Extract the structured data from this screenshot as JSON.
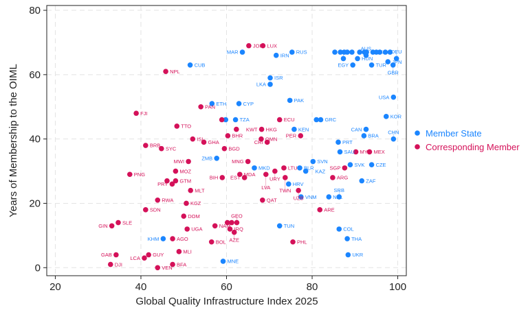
{
  "chart_data": {
    "type": "scatter",
    "xlabel": "Global Quality Infrastructure Index 2025",
    "ylabel": "Years of Membership to the OIML",
    "xlim": [
      18,
      102
    ],
    "ylim": [
      -2.5,
      81.5
    ],
    "xticks": [
      20,
      40,
      60,
      80,
      100
    ],
    "yticks": [
      0,
      20,
      40,
      60,
      80
    ],
    "grid": true,
    "legend_placement": "right",
    "series": [
      {
        "name": "Member State",
        "color": "#1a85ff",
        "points": [
          {
            "label": "MAR",
            "x": 63.7,
            "y": 67
          },
          {
            "label": "IRN",
            "x": 71.6,
            "y": 66
          },
          {
            "label": "RUS",
            "x": 75.3,
            "y": 67
          },
          {
            "label": "CUB",
            "x": 51.5,
            "y": 63
          },
          {
            "label": "ISR",
            "x": 70.2,
            "y": 59
          },
          {
            "label": "LKA",
            "x": 70.2,
            "y": 57
          },
          {
            "label": "ETH",
            "x": 56.6,
            "y": 51
          },
          {
            "label": "CYP",
            "x": 62.9,
            "y": 51
          },
          {
            "label": "PAK",
            "x": 74.8,
            "y": 52
          },
          {
            "label": "",
            "x": 59.8,
            "y": 46
          },
          {
            "label": "TZA",
            "x": 62.1,
            "y": 46
          },
          {
            "label": "KEN",
            "x": 75.8,
            "y": 43
          },
          {
            "label": "ZMB",
            "x": 57.7,
            "y": 34
          },
          {
            "label": "MKD",
            "x": 66.5,
            "y": 31
          },
          {
            "label": "BLR",
            "x": 77.1,
            "y": 31
          },
          {
            "label": "SVN",
            "x": 80.2,
            "y": 33
          },
          {
            "label": "KAZ",
            "x": 78.5,
            "y": 30
          },
          {
            "label": "HRV",
            "x": 74.5,
            "y": 26
          },
          {
            "label": "VNM",
            "x": 77.4,
            "y": 22
          },
          {
            "label": "NZL",
            "x": 83.9,
            "y": 22
          },
          {
            "label": "SRB",
            "x": 86.3,
            "y": 22
          },
          {
            "label": "TUN",
            "x": 72.4,
            "y": 13
          },
          {
            "label": "COL",
            "x": 86.3,
            "y": 12
          },
          {
            "label": "THA",
            "x": 88.2,
            "y": 9
          },
          {
            "label": "UKR",
            "x": 88.4,
            "y": 4
          },
          {
            "label": "MNE",
            "x": 59.2,
            "y": 2
          },
          {
            "label": "KHM",
            "x": 45.2,
            "y": 9
          },
          {
            "label": "PRT",
            "x": 86.1,
            "y": 39
          },
          {
            "label": "SAU",
            "x": 86.5,
            "y": 36
          },
          {
            "label": "SVK",
            "x": 88.9,
            "y": 32
          },
          {
            "label": "CZE",
            "x": 93.9,
            "y": 32
          },
          {
            "label": "ZAF",
            "x": 91.6,
            "y": 27
          },
          {
            "label": "CAN",
            "x": 92.6,
            "y": 43
          },
          {
            "label": "BRA",
            "x": 92.1,
            "y": 41
          },
          {
            "label": "CHN",
            "x": 99,
            "y": 40
          },
          {
            "label": "KOR",
            "x": 97.3,
            "y": 47
          },
          {
            "label": "USA",
            "x": 99,
            "y": 53
          },
          {
            "label": "",
            "x": 81,
            "y": 46
          },
          {
            "label": "GRC",
            "x": 82,
            "y": 46
          },
          {
            "label": "BEL",
            "x": 87.3,
            "y": 65
          },
          {
            "label": "HUN",
            "x": 90.6,
            "y": 65
          },
          {
            "label": "EGY",
            "x": 89.5,
            "y": 63
          },
          {
            "label": "TUR",
            "x": 93.9,
            "y": 63
          },
          {
            "label": "JPN",
            "x": 97.7,
            "y": 64
          },
          {
            "label": "DEU",
            "x": 99.7,
            "y": 65
          },
          {
            "label": "GBR",
            "x": 98.9,
            "y": 63
          },
          {
            "label": "AUS",
            "x": 92.6,
            "y": 66
          },
          {
            "label": "",
            "x": 85.3,
            "y": 67
          },
          {
            "label": "",
            "x": 86.6,
            "y": 67
          },
          {
            "label": "",
            "x": 87.5,
            "y": 67
          },
          {
            "label": "",
            "x": 88.2,
            "y": 67
          },
          {
            "label": "",
            "x": 89.3,
            "y": 67
          },
          {
            "label": "",
            "x": 91.1,
            "y": 67
          },
          {
            "label": "",
            "x": 92.2,
            "y": 67
          },
          {
            "label": "",
            "x": 92.7,
            "y": 67
          },
          {
            "label": "",
            "x": 94.2,
            "y": 67
          },
          {
            "label": "",
            "x": 95,
            "y": 67
          },
          {
            "label": "",
            "x": 95.8,
            "y": 67
          },
          {
            "label": "",
            "x": 97.1,
            "y": 67
          },
          {
            "label": "ITA",
            "x": 98.2,
            "y": 67
          }
        ]
      },
      {
        "name": "Corresponding Member",
        "color": "#d41159",
        "points": [
          {
            "label": "JOR",
            "x": 65.2,
            "y": 69
          },
          {
            "label": "LUX",
            "x": 68.5,
            "y": 69
          },
          {
            "label": "NPL",
            "x": 45.8,
            "y": 61
          },
          {
            "label": "PAN",
            "x": 54,
            "y": 50
          },
          {
            "label": "FJI",
            "x": 38.9,
            "y": 48
          },
          {
            "label": "TTO",
            "x": 48.4,
            "y": 44
          },
          {
            "label": "ISL",
            "x": 52.1,
            "y": 40
          },
          {
            "label": "GHA",
            "x": 54.7,
            "y": 39
          },
          {
            "label": "BRB",
            "x": 41.1,
            "y": 38
          },
          {
            "label": "SYC",
            "x": 44.8,
            "y": 37
          },
          {
            "label": "MWI",
            "x": 51.1,
            "y": 33
          },
          {
            "label": "MOZ",
            "x": 48.1,
            "y": 30
          },
          {
            "label": "PNG",
            "x": 37.4,
            "y": 29
          },
          {
            "label": "",
            "x": 46.1,
            "y": 27
          },
          {
            "label": "GTM",
            "x": 48.1,
            "y": 27
          },
          {
            "label": "PRY",
            "x": 47.3,
            "y": 26
          },
          {
            "label": "MLT",
            "x": 51.6,
            "y": 24
          },
          {
            "label": "RWA",
            "x": 43.9,
            "y": 21
          },
          {
            "label": "KGZ",
            "x": 50.6,
            "y": 20
          },
          {
            "label": "SDN",
            "x": 41.1,
            "y": 18
          },
          {
            "label": "DOM",
            "x": 50,
            "y": 16
          },
          {
            "label": "SLE",
            "x": 34.7,
            "y": 14
          },
          {
            "label": "GIN",
            "x": 33.2,
            "y": 13
          },
          {
            "label": "UGA",
            "x": 50.8,
            "y": 12
          },
          {
            "label": "AGO",
            "x": 47.4,
            "y": 9
          },
          {
            "label": "BOL",
            "x": 56.5,
            "y": 8
          },
          {
            "label": "MLI",
            "x": 48.9,
            "y": 5
          },
          {
            "label": "GAB",
            "x": 34.2,
            "y": 4
          },
          {
            "label": "GUY",
            "x": 41.8,
            "y": 4
          },
          {
            "label": "LCA",
            "x": 40.8,
            "y": 3
          },
          {
            "label": "DJI",
            "x": 32.9,
            "y": 1
          },
          {
            "label": "VEN",
            "x": 43.9,
            "y": 0
          },
          {
            "label": "BFA",
            "x": 47.4,
            "y": 1
          },
          {
            "label": "NAM",
            "x": 57.3,
            "y": 13
          },
          {
            "label": "",
            "x": 60.2,
            "y": 14
          },
          {
            "label": "",
            "x": 61.2,
            "y": 14
          },
          {
            "label": "GEO",
            "x": 62.4,
            "y": 14
          },
          {
            "label": "IRQ",
            "x": 60.8,
            "y": 12
          },
          {
            "label": "AZE",
            "x": 61.8,
            "y": 11
          },
          {
            "label": "BIH",
            "x": 59,
            "y": 28
          },
          {
            "label": "MDA",
            "x": 63.1,
            "y": 29
          },
          {
            "label": "EST",
            "x": 64.2,
            "y": 28
          },
          {
            "label": "MNG",
            "x": 65,
            "y": 33
          },
          {
            "label": "BGD",
            "x": 59.5,
            "y": 37
          },
          {
            "label": "BHR",
            "x": 60.3,
            "y": 41
          },
          {
            "label": "KWT",
            "x": 62.3,
            "y": 43
          },
          {
            "label": "",
            "x": 58.9,
            "y": 46
          },
          {
            "label": "HKG",
            "x": 68.2,
            "y": 43
          },
          {
            "label": "OMN",
            "x": 68.1,
            "y": 40
          },
          {
            "label": "CRI",
            "x": 69.5,
            "y": 39
          },
          {
            "label": "ECU",
            "x": 72.4,
            "y": 46
          },
          {
            "label": "PER",
            "x": 77.3,
            "y": 41
          },
          {
            "label": "LVA",
            "x": 69.2,
            "y": 29
          },
          {
            "label": "URY",
            "x": 71.3,
            "y": 30
          },
          {
            "label": "LTU",
            "x": 73.4,
            "y": 31
          },
          {
            "label": "TWN",
            "x": 73.7,
            "y": 28
          },
          {
            "label": "UZB",
            "x": 76.8,
            "y": 24
          },
          {
            "label": "QAT",
            "x": 68.4,
            "y": 21
          },
          {
            "label": "ARE",
            "x": 81.8,
            "y": 18
          },
          {
            "label": "ARG",
            "x": 84.8,
            "y": 28
          },
          {
            "label": "SGP",
            "x": 87.6,
            "y": 31
          },
          {
            "label": "MYS",
            "x": 90.2,
            "y": 36
          },
          {
            "label": "MEX",
            "x": 93.4,
            "y": 36
          },
          {
            "label": "PHL",
            "x": 75.5,
            "y": 8
          }
        ]
      }
    ]
  }
}
